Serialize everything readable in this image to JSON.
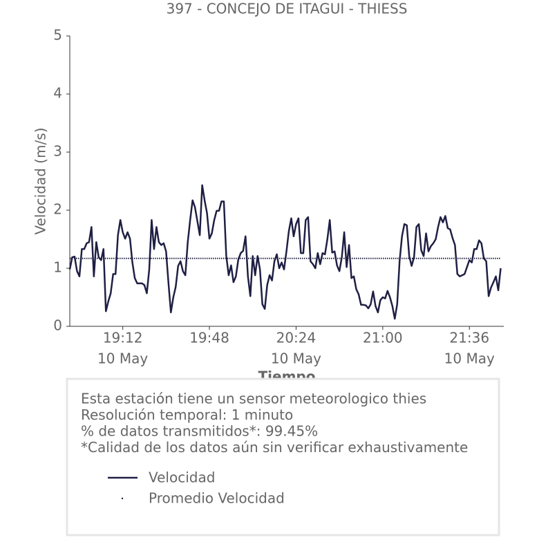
{
  "chart_data": {
    "type": "line",
    "title": "397 - CONCEJO DE ITAGUI - THIESS",
    "xlabel": "Tiempo",
    "ylabel": "Velocidad (m/s)",
    "x": [
      "18:50",
      "18:51",
      "18:52",
      "18:53",
      "18:54",
      "18:55",
      "18:56",
      "18:57",
      "18:58",
      "18:59",
      "19:00",
      "19:01",
      "19:02",
      "19:03",
      "19:04",
      "19:05",
      "19:06",
      "19:07",
      "19:08",
      "19:09",
      "19:10",
      "19:11",
      "19:12",
      "19:13",
      "19:14",
      "19:15",
      "19:16",
      "19:17",
      "19:18",
      "19:19",
      "19:20",
      "19:21",
      "19:22",
      "19:23",
      "19:24",
      "19:25",
      "19:26",
      "19:27",
      "19:28",
      "19:29",
      "19:30",
      "19:31",
      "19:32",
      "19:33",
      "19:34",
      "19:35",
      "19:36",
      "19:37",
      "19:38",
      "19:39",
      "19:40",
      "19:41",
      "19:42",
      "19:43",
      "19:44",
      "19:45",
      "19:46",
      "19:47",
      "19:48",
      "19:49",
      "19:50",
      "19:51",
      "19:52",
      "19:53",
      "19:54",
      "19:55",
      "19:56",
      "19:57",
      "19:58",
      "19:59",
      "20:00",
      "20:01",
      "20:02",
      "20:03",
      "20:04",
      "20:05",
      "20:06",
      "20:07",
      "20:08",
      "20:09",
      "20:10",
      "20:11",
      "20:12",
      "20:13",
      "20:14",
      "20:15",
      "20:16",
      "20:17",
      "20:18",
      "20:19",
      "20:20",
      "20:21",
      "20:22",
      "20:23",
      "20:24",
      "20:25",
      "20:26",
      "20:27",
      "20:28",
      "20:29",
      "20:30",
      "20:31",
      "20:32",
      "20:33",
      "20:34",
      "20:35",
      "20:36",
      "20:37",
      "20:38",
      "20:39",
      "20:40",
      "20:41",
      "20:42",
      "20:43",
      "20:44",
      "20:45",
      "20:46",
      "20:47",
      "20:48",
      "20:49",
      "20:50",
      "20:51",
      "20:52",
      "20:53",
      "20:54",
      "20:55",
      "20:56",
      "20:57",
      "20:58",
      "20:59",
      "21:00",
      "21:01",
      "21:02",
      "21:03",
      "21:04",
      "21:05",
      "21:06",
      "21:07",
      "21:08",
      "21:09",
      "21:10",
      "21:11",
      "21:12",
      "21:13",
      "21:14",
      "21:15",
      "21:16",
      "21:17",
      "21:18",
      "21:19",
      "21:20",
      "21:21",
      "21:22",
      "21:23",
      "21:24",
      "21:25",
      "21:26",
      "21:27",
      "21:28",
      "21:29",
      "21:30",
      "21:31",
      "21:32",
      "21:33",
      "21:34",
      "21:35",
      "21:36",
      "21:37",
      "21:38",
      "21:39",
      "21:40",
      "21:41",
      "21:42",
      "21:43",
      "21:44",
      "21:45",
      "21:46",
      "21:47",
      "21:48",
      "21:49"
    ],
    "series": [
      {
        "name": "Velocidad",
        "color": "#1f1f44",
        "values": [
          0.98,
          1.19,
          1.2,
          0.95,
          0.86,
          1.33,
          1.33,
          1.43,
          1.45,
          1.71,
          0.86,
          1.45,
          1.19,
          1.14,
          1.33,
          0.26,
          0.43,
          0.57,
          0.9,
          0.9,
          1.57,
          1.83,
          1.62,
          1.51,
          1.62,
          1.51,
          1.1,
          0.83,
          0.74,
          0.74,
          0.74,
          0.71,
          0.57,
          0.98,
          1.83,
          1.33,
          1.71,
          1.45,
          1.4,
          1.43,
          1.29,
          0.74,
          0.24,
          0.5,
          0.68,
          1.04,
          1.12,
          0.95,
          0.88,
          1.45,
          1.83,
          2.17,
          2.05,
          1.81,
          1.57,
          2.43,
          2.17,
          1.95,
          1.51,
          1.6,
          1.83,
          1.99,
          1.99,
          2.15,
          2.15,
          1.21,
          0.88,
          1.05,
          0.76,
          0.86,
          1.15,
          1.26,
          1.3,
          1.55,
          0.86,
          0.52,
          1.21,
          0.88,
          1.21,
          0.98,
          0.38,
          0.3,
          0.71,
          0.88,
          0.79,
          1.12,
          1.24,
          1.0,
          1.1,
          0.98,
          1.29,
          1.64,
          1.86,
          1.55,
          1.76,
          1.86,
          1.26,
          1.26,
          1.83,
          1.88,
          1.12,
          1.07,
          1.0,
          1.26,
          1.07,
          1.26,
          1.24,
          1.5,
          1.83,
          1.27,
          1.29,
          1.05,
          0.95,
          1.19,
          1.62,
          1.02,
          1.4,
          0.83,
          0.86,
          0.64,
          0.55,
          0.37,
          0.37,
          0.36,
          0.31,
          0.38,
          0.6,
          0.35,
          0.24,
          0.45,
          0.5,
          0.48,
          0.61,
          0.5,
          0.35,
          0.13,
          0.38,
          1.12,
          1.55,
          1.76,
          1.74,
          1.21,
          1.04,
          1.19,
          1.71,
          1.76,
          1.31,
          1.21,
          1.6,
          1.29,
          1.38,
          1.43,
          1.5,
          1.71,
          1.88,
          1.79,
          1.9,
          1.69,
          1.67,
          1.52,
          1.4,
          0.9,
          0.86,
          0.88,
          0.9,
          1.02,
          1.14,
          1.1,
          1.33,
          1.33,
          1.48,
          1.43,
          1.17,
          1.12,
          0.52,
          0.67,
          0.76,
          0.86,
          0.62,
          1.0
        ]
      }
    ],
    "mean_line": {
      "name": "Promedio Velocidad",
      "color": "#1f1f44",
      "value": 1.17
    },
    "xlim": [
      "18:50",
      "21:50"
    ],
    "xticks": [
      {
        "value": "19:12",
        "label": "19:12",
        "date": "10 May"
      },
      {
        "value": "19:48",
        "label": "19:48"
      },
      {
        "value": "20:24",
        "label": "20:24",
        "date": "10 May"
      },
      {
        "value": "21:00",
        "label": "21:00"
      },
      {
        "value": "21:36",
        "label": "21:36",
        "date": "10 May"
      }
    ],
    "ylim": [
      0,
      5
    ],
    "yticks": [
      0,
      1,
      2,
      3,
      4,
      5
    ],
    "grid": false,
    "annotations": [
      "Esta estación tiene un sensor meteorologico thies",
      "Resolución temporal: 1 minuto",
      "% de datos transmitidos*: 99.45%",
      "*Calidad de los datos aún sin verificar exhaustivamente"
    ]
  }
}
